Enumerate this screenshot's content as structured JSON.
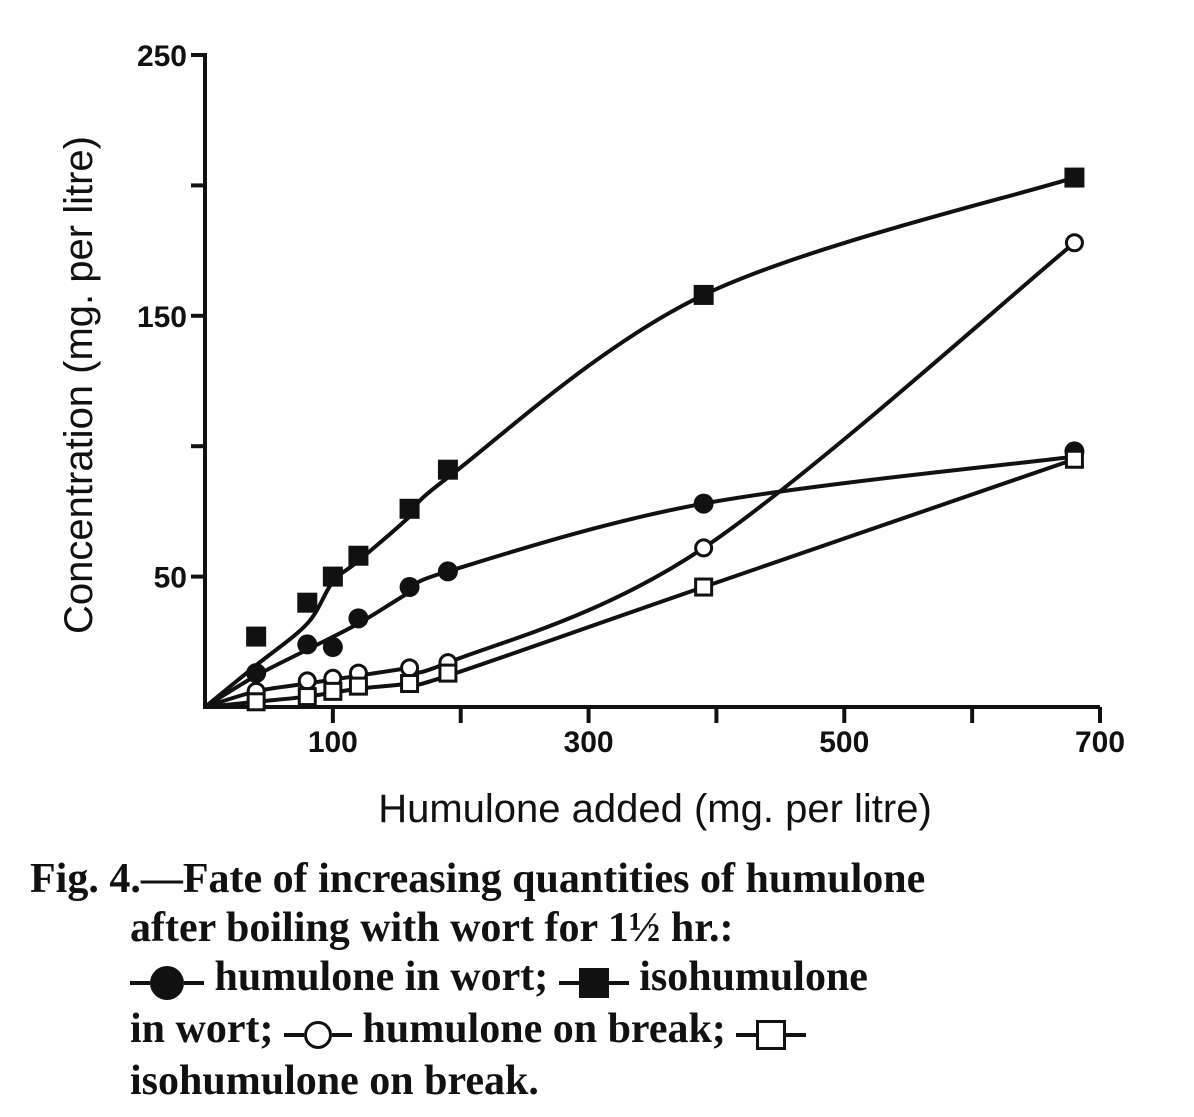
{
  "caption": {
    "line1": "Fig. 4.—Fate of increasing quantities of humulone",
    "line2": "after boiling with wort for 1½ hr.:",
    "legend": [
      {
        "label": " humulone in wort; ",
        "marker": "filled-circle"
      },
      {
        "label": " isohumulone",
        "marker": "filled-square"
      },
      {
        "label": " in wort; ",
        "marker": "none"
      },
      {
        "label": " humulone on break; ",
        "marker": "open-circle"
      },
      {
        "label": "isohumulone on break.",
        "marker": "open-square"
      }
    ],
    "legend_words": {
      "humulone_wort": "humulone in wort;",
      "isohumulone": "isohumulone",
      "in_wort": "in wort;",
      "humulone_break": "humulone on break;",
      "isohumulone_break": "isohumulone on break."
    }
  },
  "chart_data": {
    "type": "scatter",
    "xlabel": "Humulone added (mg. per litre)",
    "ylabel": "Concentration (mg. per litre)",
    "xlim": [
      0,
      700
    ],
    "ylim": [
      0,
      250
    ],
    "xticks_labeled": [
      "100",
      "300",
      "500",
      "700"
    ],
    "xtick_values_labeled": [
      100,
      300,
      500,
      700
    ],
    "xtick_values_minor": [
      200,
      400,
      600
    ],
    "yticks_labeled": [
      "50",
      "150",
      "250"
    ],
    "ytick_values_labeled": [
      50,
      150,
      250
    ],
    "ytick_values_minor": [
      100,
      200
    ],
    "grid": false,
    "series": [
      {
        "name": "isohumulone in wort",
        "marker": "filled-square",
        "points": [
          [
            40,
            27
          ],
          [
            80,
            40
          ],
          [
            100,
            50
          ],
          [
            120,
            58
          ],
          [
            160,
            76
          ],
          [
            190,
            91
          ],
          [
            390,
            158
          ],
          [
            680,
            203
          ]
        ],
        "curve": [
          [
            0,
            0
          ],
          [
            40,
            16
          ],
          [
            80,
            32
          ],
          [
            100,
            48
          ],
          [
            120,
            56
          ],
          [
            160,
            73
          ],
          [
            190,
            88
          ],
          [
            390,
            158
          ],
          [
            680,
            203
          ]
        ]
      },
      {
        "name": "humulone in wort",
        "marker": "filled-circle",
        "points": [
          [
            40,
            13
          ],
          [
            80,
            24
          ],
          [
            100,
            23
          ],
          [
            120,
            34
          ],
          [
            160,
            46
          ],
          [
            190,
            52
          ],
          [
            390,
            78
          ],
          [
            680,
            98
          ]
        ],
        "curve": [
          [
            0,
            0
          ],
          [
            40,
            12
          ],
          [
            80,
            22
          ],
          [
            120,
            32
          ],
          [
            160,
            44
          ],
          [
            190,
            52
          ],
          [
            390,
            78
          ],
          [
            680,
            96
          ]
        ]
      },
      {
        "name": "humulone on break",
        "marker": "open-circle",
        "points": [
          [
            40,
            6
          ],
          [
            80,
            10
          ],
          [
            100,
            11
          ],
          [
            120,
            13
          ],
          [
            160,
            15
          ],
          [
            190,
            17
          ],
          [
            390,
            61
          ],
          [
            680,
            178
          ]
        ],
        "curve": [
          [
            0,
            0
          ],
          [
            40,
            6
          ],
          [
            80,
            9
          ],
          [
            120,
            12
          ],
          [
            160,
            15
          ],
          [
            190,
            17
          ],
          [
            390,
            61
          ],
          [
            680,
            178
          ]
        ]
      },
      {
        "name": "isohumulone on break",
        "marker": "open-square",
        "points": [
          [
            40,
            2
          ],
          [
            80,
            4
          ],
          [
            100,
            6
          ],
          [
            120,
            8
          ],
          [
            160,
            9
          ],
          [
            190,
            13
          ],
          [
            390,
            46
          ],
          [
            680,
            95
          ]
        ],
        "curve": [
          [
            0,
            0
          ],
          [
            40,
            2
          ],
          [
            80,
            4
          ],
          [
            120,
            7
          ],
          [
            160,
            9
          ],
          [
            190,
            12
          ],
          [
            390,
            46
          ],
          [
            680,
            95
          ]
        ]
      }
    ]
  }
}
